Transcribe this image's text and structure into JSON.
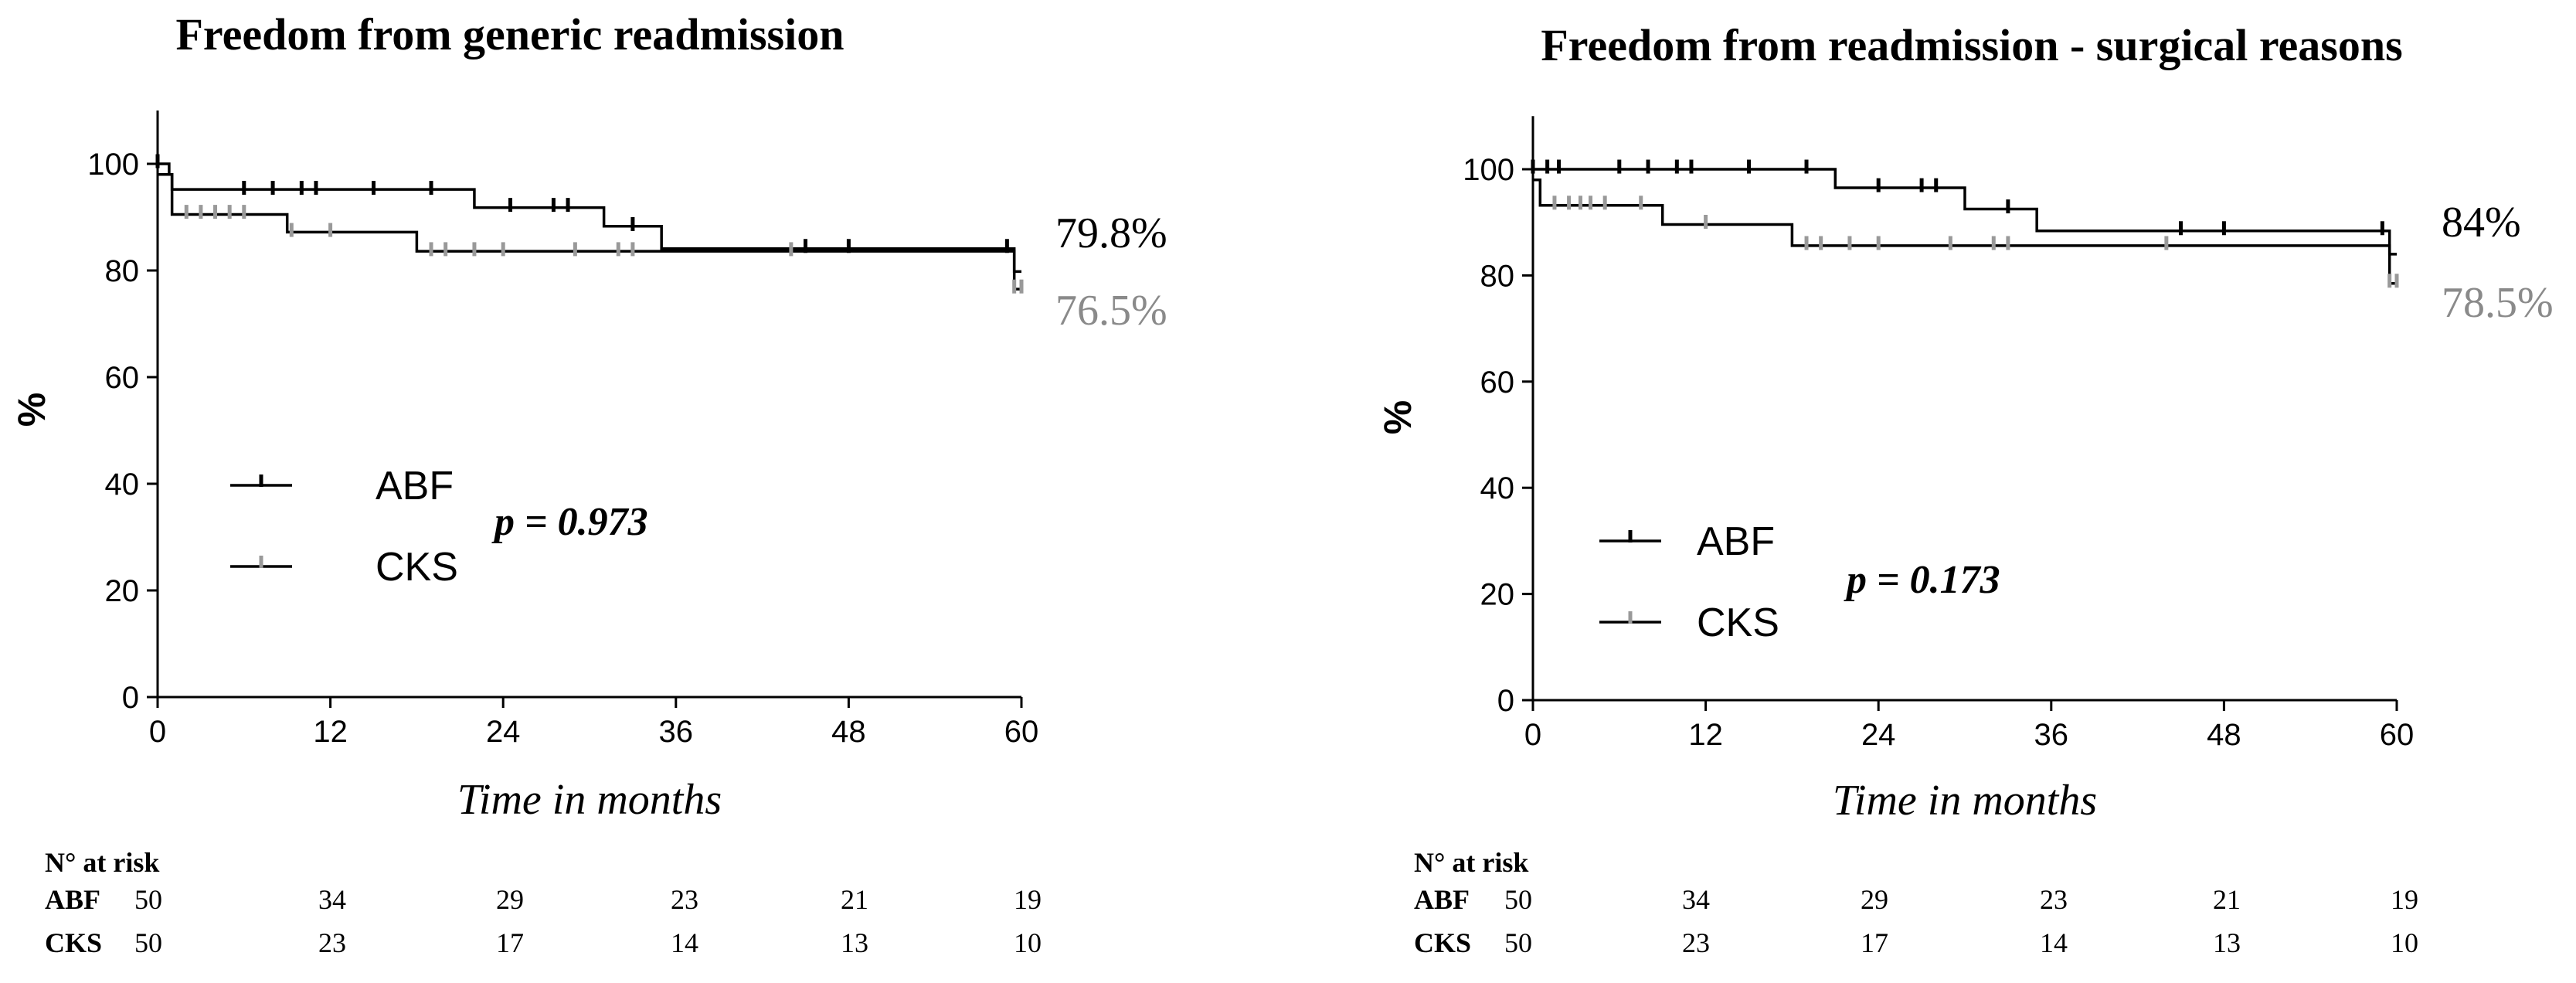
{
  "chart_data": [
    {
      "type": "line",
      "subtype": "kaplan-meier",
      "title": "Freedom from generic readmission",
      "xlabel": "Time in months",
      "ylabel": "%",
      "xlim": [
        0,
        60
      ],
      "ylim": [
        0,
        110
      ],
      "xticks": [
        0,
        12,
        24,
        36,
        48,
        60
      ],
      "yticks": [
        0,
        20,
        40,
        60,
        80,
        100
      ],
      "legend": "center-left",
      "p_value": "p = 0.973",
      "series": [
        {
          "name": "ABF",
          "color": "#000000",
          "end_label": "79.8%",
          "steps": [
            [
              0,
              100
            ],
            [
              0.8,
              98
            ],
            [
              1,
              95.2
            ],
            [
              22,
              91.8
            ],
            [
              31,
              88.3
            ],
            [
              35,
              84.1
            ],
            [
              59.5,
              79.8
            ],
            [
              60,
              79.8
            ]
          ],
          "censors": [
            [
              0,
              100.5
            ],
            [
              6,
              95.5
            ],
            [
              8,
              95.5
            ],
            [
              10,
              95.5
            ],
            [
              11,
              95.5
            ],
            [
              15,
              95.5
            ],
            [
              19,
              95.5
            ],
            [
              24.5,
              92.3
            ],
            [
              27.5,
              92.3
            ],
            [
              28.5,
              92.3
            ],
            [
              33,
              88.7
            ],
            [
              45,
              84.6
            ],
            [
              48,
              84.6
            ],
            [
              59,
              84.6
            ]
          ]
        },
        {
          "name": "CKS",
          "color": "#999999",
          "end_label": "76.5%",
          "steps": [
            [
              0,
              98
            ],
            [
              1,
              90.5
            ],
            [
              9,
              87.2
            ],
            [
              18,
              83.6
            ],
            [
              59.5,
              76.5
            ],
            [
              60,
              76.5
            ]
          ],
          "censors": [
            [
              2,
              91
            ],
            [
              3,
              91
            ],
            [
              4,
              91
            ],
            [
              5,
              91
            ],
            [
              6,
              91
            ],
            [
              9.3,
              87.6
            ],
            [
              12,
              87.6
            ],
            [
              19,
              84
            ],
            [
              20,
              84
            ],
            [
              22,
              84
            ],
            [
              24,
              84
            ],
            [
              29,
              84
            ],
            [
              32,
              84
            ],
            [
              33,
              84
            ],
            [
              44,
              84
            ],
            [
              59.5,
              77
            ],
            [
              60,
              77
            ]
          ]
        }
      ],
      "at_risk": {
        "header": "N° at risk",
        "times": [
          0,
          12,
          24,
          36,
          48,
          60
        ],
        "rows": [
          {
            "group": "ABF",
            "values": [
              "50",
              "34",
              "29",
              "23",
              "21",
              "19"
            ]
          },
          {
            "group": "CKS",
            "values": [
              "50",
              "23",
              "17",
              "14",
              "13",
              "10"
            ]
          }
        ]
      }
    },
    {
      "type": "line",
      "subtype": "kaplan-meier",
      "title": "Freedom from readmission - surgical reasons",
      "xlabel": "Time in months",
      "ylabel": "%",
      "xlim": [
        0,
        60
      ],
      "ylim": [
        0,
        110
      ],
      "xticks": [
        0,
        12,
        24,
        36,
        48,
        60
      ],
      "yticks": [
        0,
        20,
        40,
        60,
        80,
        100
      ],
      "legend": "center-left",
      "p_value": "p = 0.173",
      "series": [
        {
          "name": "ABF",
          "color": "#000000",
          "end_label": "84%",
          "steps": [
            [
              0,
              100
            ],
            [
              21,
              96.5
            ],
            [
              30,
              92.5
            ],
            [
              35,
              88.4
            ],
            [
              59.5,
              84
            ],
            [
              60,
              84
            ]
          ],
          "censors": [
            [
              0,
              100.5
            ],
            [
              1,
              100.5
            ],
            [
              1.8,
              100.5
            ],
            [
              6,
              100.5
            ],
            [
              8,
              100.5
            ],
            [
              10,
              100.5
            ],
            [
              11,
              100.5
            ],
            [
              15,
              100.5
            ],
            [
              19,
              100.5
            ],
            [
              24,
              97
            ],
            [
              27,
              97
            ],
            [
              28,
              97
            ],
            [
              33,
              93
            ],
            [
              45,
              88.9
            ],
            [
              48,
              88.9
            ],
            [
              59,
              88.9
            ]
          ]
        },
        {
          "name": "CKS",
          "color": "#999999",
          "end_label": "78.5%",
          "steps": [
            [
              0,
              98
            ],
            [
              0.5,
              93.2
            ],
            [
              9,
              89.6
            ],
            [
              18,
              85.6
            ],
            [
              59.5,
              78.5
            ],
            [
              60,
              78.5
            ]
          ],
          "censors": [
            [
              1.5,
              93.7
            ],
            [
              2.5,
              93.7
            ],
            [
              3.3,
              93.7
            ],
            [
              4,
              93.7
            ],
            [
              5,
              93.7
            ],
            [
              7.5,
              93.7
            ],
            [
              12,
              90.1
            ],
            [
              19,
              86.1
            ],
            [
              20,
              86.1
            ],
            [
              22,
              86.1
            ],
            [
              24,
              86.1
            ],
            [
              29,
              86.1
            ],
            [
              32,
              86.1
            ],
            [
              33,
              86.1
            ],
            [
              44,
              86.1
            ],
            [
              59.5,
              79
            ],
            [
              60,
              79
            ]
          ]
        }
      ],
      "at_risk": {
        "header": "N° at risk",
        "times": [
          0,
          12,
          24,
          36,
          48,
          60
        ],
        "rows": [
          {
            "group": "ABF",
            "values": [
              "50",
              "34",
              "29",
              "23",
              "21",
              "19"
            ]
          },
          {
            "group": "CKS",
            "values": [
              "50",
              "23",
              "17",
              "14",
              "13",
              "10"
            ]
          }
        ]
      }
    }
  ]
}
